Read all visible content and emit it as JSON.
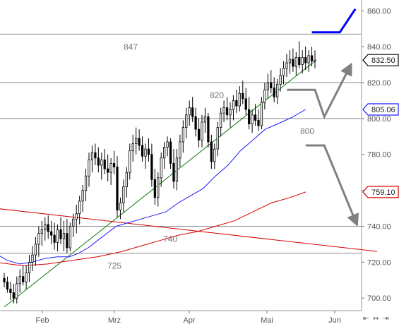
{
  "chart_data": {
    "type": "candlestick",
    "x_labels": [
      "Feb",
      "Mrz",
      "Apr",
      "Mai",
      "Jun"
    ],
    "y_ticks": [
      700,
      720,
      740,
      760,
      780,
      800,
      820,
      840,
      860
    ],
    "y_tick_labels": [
      "700.00",
      "720.00",
      "740.00",
      "760.00",
      "780.00",
      "800.00",
      "820.00",
      "840.00",
      "860.00"
    ],
    "ylim": [
      693,
      866
    ],
    "horizontal_levels": [
      {
        "value": 847,
        "label": "847"
      },
      {
        "value": 820,
        "label": "820"
      },
      {
        "value": 800,
        "label": "800"
      },
      {
        "value": 740,
        "label": "740"
      },
      {
        "value": 725,
        "label": "725"
      }
    ],
    "price_badges": [
      {
        "value": 832.5,
        "label": "832.50",
        "color": "#000000"
      },
      {
        "value": 805.06,
        "label": "805.06",
        "color": "#1a1aff"
      },
      {
        "value": 759.1,
        "label": "759.10",
        "color": "#d40000"
      }
    ],
    "candles": [
      [
        711,
        714,
        706,
        709
      ],
      [
        709,
        712,
        703,
        705
      ],
      [
        705,
        709,
        699,
        703
      ],
      [
        703,
        708,
        697,
        700
      ],
      [
        700,
        712,
        697,
        708
      ],
      [
        708,
        716,
        703,
        712
      ],
      [
        712,
        718,
        707,
        709
      ],
      [
        709,
        718,
        705,
        714
      ],
      [
        714,
        724,
        709,
        720
      ],
      [
        720,
        729,
        715,
        724
      ],
      [
        724,
        734,
        718,
        730
      ],
      [
        730,
        740,
        723,
        736
      ],
      [
        736,
        743,
        729,
        738
      ],
      [
        738,
        745,
        732,
        741
      ],
      [
        741,
        746,
        733,
        737
      ],
      [
        737,
        743,
        730,
        735
      ],
      [
        735,
        742,
        727,
        731
      ],
      [
        731,
        741,
        726,
        738
      ],
      [
        738,
        745,
        730,
        733
      ],
      [
        733,
        743,
        726,
        736
      ],
      [
        736,
        744,
        725,
        728
      ],
      [
        728,
        742,
        726,
        740
      ],
      [
        740,
        747,
        734,
        744
      ],
      [
        744,
        752,
        736,
        747
      ],
      [
        747,
        757,
        741,
        754
      ],
      [
        754,
        763,
        748,
        760
      ],
      [
        760,
        772,
        754,
        768
      ],
      [
        768,
        781,
        762,
        777
      ],
      [
        777,
        785,
        770,
        781
      ],
      [
        781,
        786,
        774,
        778
      ],
      [
        778,
        784,
        770,
        774
      ],
      [
        774,
        781,
        766,
        777
      ],
      [
        777,
        783,
        769,
        772
      ],
      [
        772,
        780,
        765,
        770
      ],
      [
        770,
        778,
        763,
        775
      ],
      [
        775,
        782,
        769,
        773
      ],
      [
        773,
        779,
        745,
        749
      ],
      [
        749,
        756,
        744,
        753
      ],
      [
        753,
        766,
        748,
        762
      ],
      [
        762,
        773,
        756,
        770
      ],
      [
        770,
        786,
        766,
        782
      ],
      [
        782,
        791,
        776,
        786
      ],
      [
        786,
        795,
        780,
        789
      ],
      [
        789,
        794,
        782,
        785
      ],
      [
        785,
        790,
        776,
        779
      ],
      [
        779,
        786,
        772,
        783
      ],
      [
        783,
        789,
        776,
        780
      ],
      [
        780,
        786,
        762,
        766
      ],
      [
        766,
        772,
        752,
        756
      ],
      [
        756,
        770,
        751,
        767
      ],
      [
        767,
        781,
        762,
        778
      ],
      [
        778,
        787,
        772,
        784
      ],
      [
        784,
        790,
        779,
        787
      ],
      [
        787,
        789,
        772,
        775
      ],
      [
        775,
        783,
        761,
        765
      ],
      [
        765,
        783,
        760,
        778
      ],
      [
        778,
        791,
        773,
        787
      ],
      [
        787,
        799,
        781,
        795
      ],
      [
        795,
        806,
        789,
        802
      ],
      [
        802,
        810,
        796,
        806
      ],
      [
        806,
        812,
        798,
        801
      ],
      [
        801,
        806,
        790,
        794
      ],
      [
        794,
        800,
        784,
        788
      ],
      [
        788,
        802,
        784,
        798
      ],
      [
        798,
        806,
        792,
        801
      ],
      [
        801,
        803,
        784,
        787
      ],
      [
        787,
        791,
        772,
        776
      ],
      [
        776,
        786,
        772,
        783
      ],
      [
        783,
        798,
        779,
        795
      ],
      [
        795,
        806,
        790,
        803
      ],
      [
        803,
        810,
        798,
        806
      ],
      [
        806,
        812,
        799,
        802
      ],
      [
        802,
        809,
        795,
        805
      ],
      [
        805,
        813,
        799,
        810
      ],
      [
        810,
        816,
        803,
        807
      ],
      [
        807,
        818,
        804,
        814
      ],
      [
        814,
        821,
        808,
        811
      ],
      [
        811,
        817,
        802,
        805
      ],
      [
        805,
        812,
        794,
        797
      ],
      [
        797,
        805,
        792,
        802
      ],
      [
        802,
        808,
        796,
        799
      ],
      [
        799,
        805,
        793,
        796
      ],
      [
        796,
        812,
        794,
        809
      ],
      [
        809,
        820,
        805,
        816
      ],
      [
        816,
        825,
        811,
        820
      ],
      [
        820,
        827,
        814,
        817
      ],
      [
        817,
        823,
        809,
        812
      ],
      [
        812,
        822,
        808,
        819
      ],
      [
        819,
        828,
        815,
        824
      ],
      [
        824,
        832,
        819,
        828
      ],
      [
        828,
        836,
        823,
        831
      ],
      [
        831,
        838,
        825,
        833
      ],
      [
        833,
        839,
        826,
        829
      ],
      [
        829,
        837,
        824,
        834
      ],
      [
        834,
        843,
        828,
        830
      ],
      [
        830,
        838,
        825,
        834
      ],
      [
        834,
        840,
        827,
        831
      ],
      [
        831,
        838,
        826,
        835
      ],
      [
        835,
        840,
        829,
        832
      ],
      [
        832,
        838,
        828,
        832.5
      ]
    ],
    "lines": [
      {
        "name": "",
        "color": "#0a7a0a",
        "points": [
          [
            0,
            695
          ],
          [
            100,
            832
          ]
        ]
      },
      {
        "name": "",
        "color": "#d40000",
        "points": [
          [
            -3,
            750
          ],
          [
            120,
            726
          ]
        ]
      },
      {
        "name": "",
        "color": "#1a1aff",
        "points": [
          [
            -3,
            725
          ],
          [
            1,
            721
          ],
          [
            5,
            719
          ],
          [
            9,
            720
          ],
          [
            13,
            722
          ],
          [
            17,
            723
          ],
          [
            21,
            723
          ],
          [
            24,
            725
          ],
          [
            27,
            728
          ],
          [
            30,
            732
          ],
          [
            33,
            736
          ],
          [
            36,
            740
          ],
          [
            40,
            742
          ],
          [
            44,
            744
          ],
          [
            48,
            746
          ],
          [
            52,
            748
          ],
          [
            56,
            753
          ],
          [
            60,
            757
          ],
          [
            64,
            761
          ],
          [
            68,
            768
          ],
          [
            72,
            774
          ],
          [
            76,
            782
          ],
          [
            80,
            788
          ],
          [
            84,
            794
          ],
          [
            88,
            797
          ],
          [
            93,
            801
          ],
          [
            97,
            805.06
          ]
        ]
      },
      {
        "name": "",
        "color": "#d40000",
        "points": [
          [
            -3,
            720
          ],
          [
            6,
            718
          ],
          [
            14,
            719
          ],
          [
            22,
            721
          ],
          [
            30,
            723
          ],
          [
            38,
            726
          ],
          [
            44,
            729
          ],
          [
            50,
            732
          ],
          [
            56,
            735
          ],
          [
            62,
            737
          ],
          [
            68,
            740
          ],
          [
            74,
            743
          ],
          [
            80,
            748
          ],
          [
            86,
            753
          ],
          [
            92,
            756
          ],
          [
            97,
            759.1
          ]
        ]
      }
    ],
    "scenario_arrows": [
      {
        "color": "#0000ff",
        "points": [
          [
            99,
            848
          ],
          [
            108,
            848
          ],
          [
            113,
            861
          ]
        ]
      },
      {
        "color": "#808080",
        "points": [
          [
            91,
            816
          ],
          [
            100,
            816
          ],
          [
            103,
            801
          ],
          [
            111,
            828
          ]
        ]
      },
      {
        "color": "#808080",
        "points": [
          [
            97,
            785
          ],
          [
            103,
            785
          ],
          [
            113,
            743
          ]
        ]
      }
    ],
    "grid": false,
    "legend": "none"
  }
}
